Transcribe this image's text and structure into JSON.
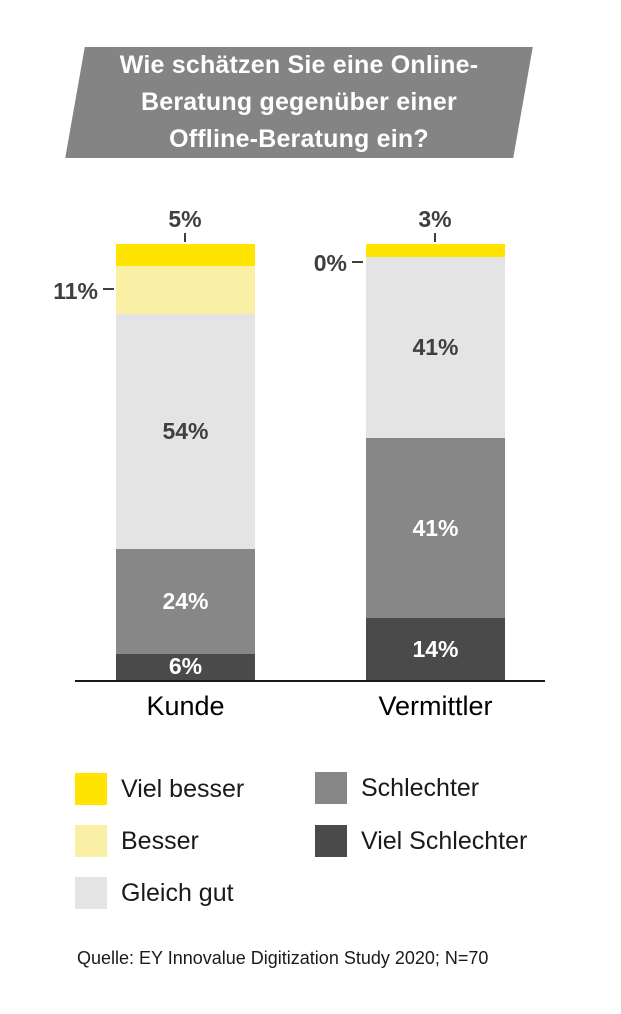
{
  "title": {
    "lines": [
      "Wie schätzen Sie eine Online-",
      "Beratung gegenüber einer",
      "Offline-Beratung ein?"
    ],
    "full": "Wie schätzen Sie eine Online-Beratung gegenüber einer Offline-Beratung ein?"
  },
  "chart_data": {
    "type": "bar",
    "stacked": true,
    "title": "Wie schätzen Sie eine Online-Beratung gegenüber einer Offline-Beratung ein?",
    "categories": [
      "Kunde",
      "Vermittler"
    ],
    "xlabel": "",
    "ylabel": "",
    "ylim": [
      0,
      100
    ],
    "value_format": "percent",
    "grid": false,
    "legend_position": "bottom",
    "series": [
      {
        "name": "Viel besser",
        "color": "#FFE400",
        "values": [
          5,
          3
        ]
      },
      {
        "name": "Besser",
        "color": "#FAF0A5",
        "values": [
          11,
          0
        ]
      },
      {
        "name": "Gleich gut",
        "color": "#E4E4E4",
        "values": [
          54,
          41
        ]
      },
      {
        "name": "Schlechter",
        "color": "#878787",
        "values": [
          24,
          41
        ]
      },
      {
        "name": "Viel Schlechter",
        "color": "#4A4A4A",
        "values": [
          6,
          14
        ]
      }
    ],
    "bars": [
      {
        "category": "Kunde",
        "segments": [
          {
            "series": "Viel besser",
            "value": 5,
            "label": "5%",
            "label_pos": "above"
          },
          {
            "series": "Besser",
            "value": 11,
            "label": "11%",
            "label_pos": "left"
          },
          {
            "series": "Gleich gut",
            "value": 54,
            "label": "54%",
            "label_pos": "inside",
            "label_color": "#3f3f3f"
          },
          {
            "series": "Schlechter",
            "value": 24,
            "label": "24%",
            "label_pos": "inside",
            "label_color": "#ffffff"
          },
          {
            "series": "Viel Schlechter",
            "value": 6,
            "label": "6%",
            "label_pos": "inside",
            "label_color": "#ffffff"
          }
        ]
      },
      {
        "category": "Vermittler",
        "segments": [
          {
            "series": "Viel besser",
            "value": 3,
            "label": "3%",
            "label_pos": "above"
          },
          {
            "series": "Besser",
            "value": 0,
            "label": "0%",
            "label_pos": "left"
          },
          {
            "series": "Gleich gut",
            "value": 41,
            "label": "41%",
            "label_pos": "inside",
            "label_color": "#3f3f3f"
          },
          {
            "series": "Schlechter",
            "value": 41,
            "label": "41%",
            "label_pos": "inside",
            "label_color": "#ffffff"
          },
          {
            "series": "Viel Schlechter",
            "value": 14,
            "label": "14%",
            "label_pos": "inside",
            "label_color": "#ffffff"
          }
        ]
      }
    ]
  },
  "colors": {
    "title_box": "#848484",
    "axis": "#1a1a1a",
    "outside_label": "#3f3f3f"
  },
  "source": {
    "text": "Quelle: EY Innovalue Digitization Study 2020; N=70"
  }
}
